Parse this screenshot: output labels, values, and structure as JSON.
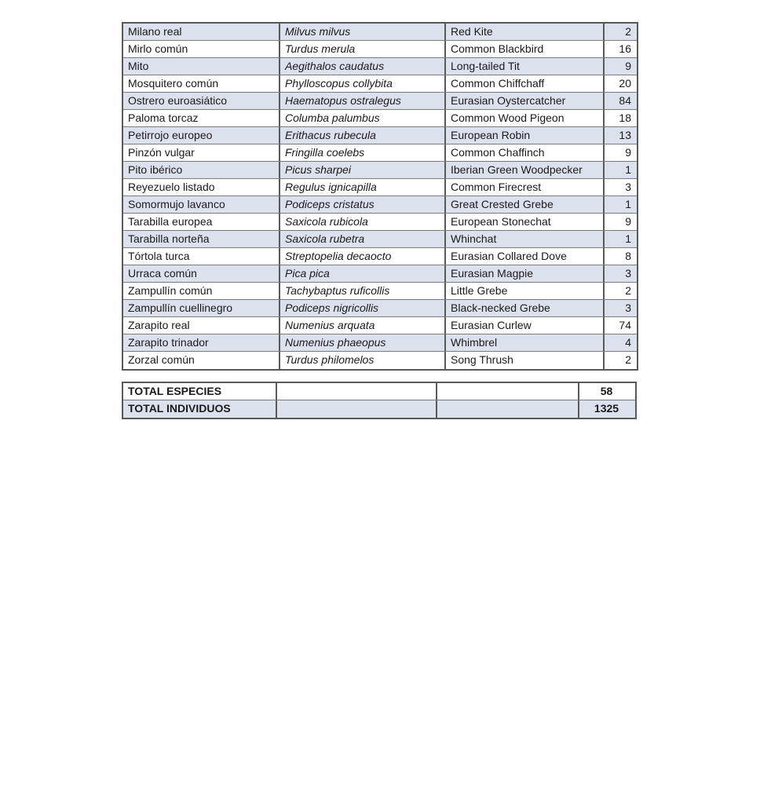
{
  "colors": {
    "row_shaded": "#dce1ee",
    "border_dark": "#595959",
    "border_light": "#7a7a7a",
    "text": "#1a1a1a"
  },
  "table": {
    "rows": [
      {
        "spanish": "Milano real",
        "scientific": "Milvus milvus",
        "english": "Red Kite",
        "count": "2"
      },
      {
        "spanish": "Mirlo común",
        "scientific": "Turdus merula",
        "english": "Common Blackbird",
        "count": "16"
      },
      {
        "spanish": "Mito",
        "scientific": "Aegithalos caudatus",
        "english": "Long-tailed Tit",
        "count": "9"
      },
      {
        "spanish": "Mosquitero común",
        "scientific": "Phylloscopus collybita",
        "english": "Common Chiffchaff",
        "count": "20"
      },
      {
        "spanish": "Ostrero euroasiático",
        "scientific": "Haematopus ostralegus",
        "english": "Eurasian Oystercatcher",
        "count": "84"
      },
      {
        "spanish": "Paloma torcaz",
        "scientific": "Columba palumbus",
        "english": "Common Wood Pigeon",
        "count": "18"
      },
      {
        "spanish": "Petirrojo europeo",
        "scientific": "Erithacus rubecula",
        "english": "European Robin",
        "count": "13"
      },
      {
        "spanish": "Pinzón vulgar",
        "scientific": "Fringilla coelebs",
        "english": "Common Chaffinch",
        "count": "9"
      },
      {
        "spanish": "Pito ibérico",
        "scientific": "Picus sharpei",
        "english": "Iberian Green Woodpecker",
        "count": "1"
      },
      {
        "spanish": "Reyezuelo listado",
        "scientific": "Regulus ignicapilla",
        "english": "Common Firecrest",
        "count": "3"
      },
      {
        "spanish": "Somormujo lavanco",
        "scientific": "Podiceps cristatus",
        "english": "Great Crested Grebe",
        "count": "1"
      },
      {
        "spanish": "Tarabilla europea",
        "scientific": "Saxicola rubicola",
        "english": "European Stonechat",
        "count": "9"
      },
      {
        "spanish": "Tarabilla norteña",
        "scientific": "Saxicola rubetra",
        "english": "Whinchat",
        "count": "1"
      },
      {
        "spanish": "Tórtola turca",
        "scientific": "Streptopelia decaocto",
        "english": "Eurasian Collared Dove",
        "count": "8"
      },
      {
        "spanish": "Urraca común",
        "scientific": "Pica pica",
        "english": "Eurasian Magpie",
        "count": "3"
      },
      {
        "spanish": "Zampullín común",
        "scientific": "Tachybaptus ruficollis",
        "english": "Little Grebe",
        "count": "2"
      },
      {
        "spanish": "Zampullín cuellinegro",
        "scientific": "Podiceps nigricollis",
        "english": "Black-necked Grebe",
        "count": "3"
      },
      {
        "spanish": "Zarapito real",
        "scientific": "Numenius arquata",
        "english": "Eurasian Curlew",
        "count": "74"
      },
      {
        "spanish": "Zarapito trinador",
        "scientific": "Numenius phaeopus",
        "english": "Whimbrel",
        "count": "4"
      },
      {
        "spanish": "Zorzal común",
        "scientific": "Turdus philomelos",
        "english": "Song Thrush",
        "count": "2"
      }
    ]
  },
  "totals": {
    "species_label": "TOTAL ESPECIES",
    "species_value": "58",
    "individuals_label": "TOTAL INDIVIDUOS",
    "individuals_value": "1325"
  }
}
